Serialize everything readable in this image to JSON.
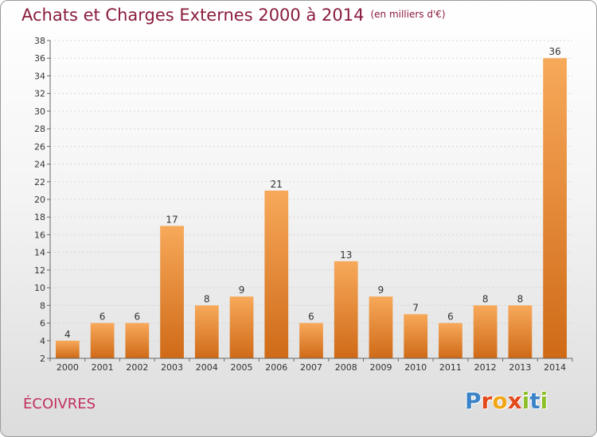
{
  "header": {
    "title": "Achats et Charges Externes 2000 à 2014",
    "unit": "(en milliers d'€)"
  },
  "footer": {
    "commune": "ÉCOIVRES",
    "logo_letters": [
      "P",
      "r",
      "o",
      "x",
      "i",
      "t",
      "i"
    ],
    "logo_colors": [
      "#3b83c8",
      "#e2491b",
      "#f2a516",
      "#e2491b",
      "#8dbf2a",
      "#3b83c8",
      "#8dbf2a"
    ]
  },
  "chart_data": {
    "type": "bar",
    "title": "Achats et Charges Externes 2000 à 2014",
    "subtitle": "(en milliers d'€)",
    "xlabel": "",
    "ylabel": "",
    "categories": [
      "2000",
      "2001",
      "2002",
      "2003",
      "2004",
      "2005",
      "2006",
      "2007",
      "2008",
      "2009",
      "2010",
      "2011",
      "2012",
      "2013",
      "2014"
    ],
    "values": [
      4,
      6,
      6,
      17,
      8,
      9,
      21,
      6,
      13,
      9,
      7,
      6,
      8,
      8,
      36
    ],
    "ylim": [
      2,
      38
    ],
    "yticks": [
      2,
      4,
      6,
      8,
      10,
      12,
      14,
      16,
      18,
      20,
      22,
      24,
      26,
      28,
      30,
      32,
      34,
      36,
      38
    ],
    "grid": true,
    "legend": "none",
    "bar_color_top": "#f7a95a",
    "bar_color_bottom": "#cf6a17",
    "axis_color": "#666666"
  }
}
